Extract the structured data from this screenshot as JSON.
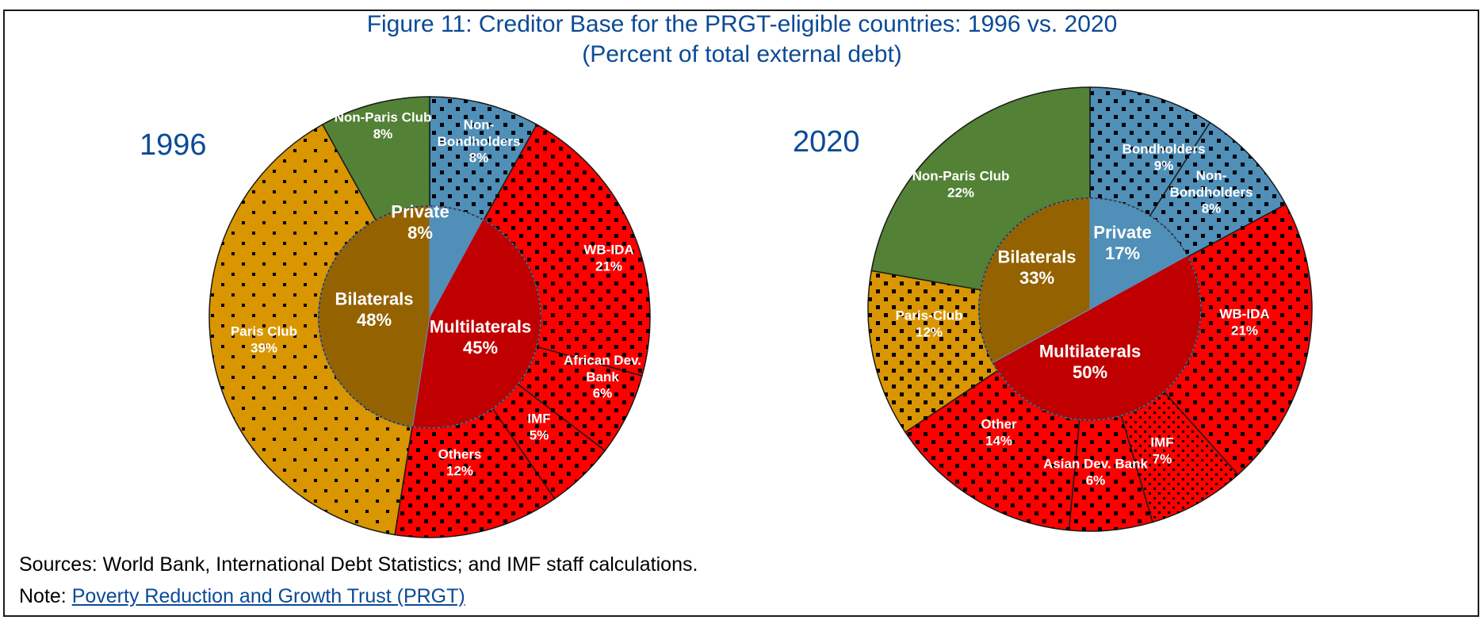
{
  "title_line1": "Figure 11: Creditor Base for the PRGT-eligible countries: 1996 vs. 2020",
  "title_line2": "(Percent of total external debt)",
  "footer": {
    "sources": "Sources: World Bank, International Debt Statistics; and IMF staff calculations.",
    "note_prefix": "Note: ",
    "note_link": "Poverty Reduction and Growth Trust (PRGT)"
  },
  "colors": {
    "private": "#4f8fb8",
    "multilaterals": "#ff0000",
    "multilaterals_inner": "#c00000",
    "bilaterals_inner": "#946200",
    "paris_club": "#d99600",
    "non_paris_club": "#538135",
    "title": "#0b4a97"
  },
  "chart_data": [
    {
      "type": "pie",
      "year": "1996",
      "inner": [
        {
          "label": "Private",
          "value_label": "8%",
          "value": 8,
          "color": "#4f8fb8"
        },
        {
          "label": "Multilaterals",
          "value_label": "45%",
          "value": 45,
          "color": "#c00000"
        },
        {
          "label": "Bilaterals",
          "value_label": "48%",
          "value": 48,
          "color": "#946200"
        }
      ],
      "outer": [
        {
          "label": "Non-Bondholders",
          "value_label": "8%",
          "value": 8,
          "color": "#4f8fb8",
          "pattern": "dots"
        },
        {
          "label": "WB-IDA",
          "value_label": "21%",
          "value": 21,
          "color": "#ff0000",
          "pattern": "dots"
        },
        {
          "label": "African Dev. Bank",
          "value_label": "6%",
          "value": 6,
          "color": "#ff0000",
          "pattern": "dots"
        },
        {
          "label": "IMF",
          "value_label": "5%",
          "value": 5,
          "color": "#ff0000",
          "pattern": "dots"
        },
        {
          "label": "Others",
          "value_label": "12%",
          "value": 12,
          "color": "#ff0000",
          "pattern": "dots"
        },
        {
          "label": "Paris Club",
          "value_label": "39%",
          "value": 39,
          "color": "#d99600",
          "pattern": "sparse"
        },
        {
          "label": "Non-Paris Club",
          "value_label": "8%",
          "value": 8,
          "color": "#538135",
          "pattern": "none"
        }
      ]
    },
    {
      "type": "pie",
      "year": "2020",
      "inner": [
        {
          "label": "Private",
          "value_label": "17%",
          "value": 17,
          "color": "#4f8fb8"
        },
        {
          "label": "Multilaterals",
          "value_label": "50%",
          "value": 50,
          "color": "#c00000"
        },
        {
          "label": "Bilaterals",
          "value_label": "33%",
          "value": 33,
          "color": "#946200"
        }
      ],
      "outer": [
        {
          "label": "Bondholders",
          "value_label": "9%",
          "value": 9,
          "color": "#4f8fb8",
          "pattern": "dots"
        },
        {
          "label": "Non-Bondholders",
          "value_label": "8%",
          "value": 8,
          "color": "#4f8fb8",
          "pattern": "dots"
        },
        {
          "label": "WB-IDA",
          "value_label": "21%",
          "value": 21,
          "color": "#ff0000",
          "pattern": "dots"
        },
        {
          "label": "IMF",
          "value_label": "7%",
          "value": 7,
          "color": "#ff0000",
          "pattern": "fine"
        },
        {
          "label": "Asian Dev. Bank",
          "value_label": "6%",
          "value": 6,
          "color": "#ff0000",
          "pattern": "dots"
        },
        {
          "label": "Other",
          "value_label": "14%",
          "value": 14,
          "color": "#ff0000",
          "pattern": "dots"
        },
        {
          "label": "Paris-Club",
          "value_label": "12%",
          "value": 12,
          "color": "#d99600",
          "pattern": "dots"
        },
        {
          "label": "Non-Paris Club",
          "value_label": "22%",
          "value": 22,
          "color": "#538135",
          "pattern": "none"
        }
      ]
    }
  ]
}
